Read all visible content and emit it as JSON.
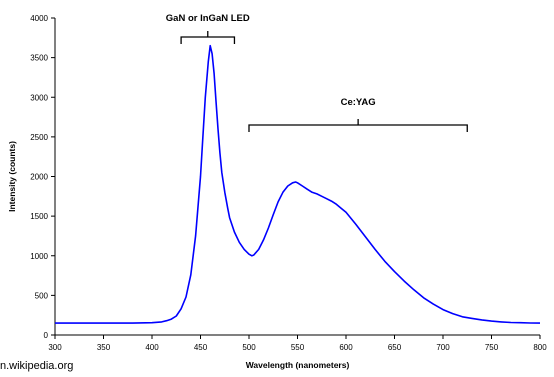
{
  "chart_data": {
    "type": "line",
    "title": "",
    "xlabel": "Wavelength (nanometers)",
    "ylabel": "Intensity (counts)",
    "xlim": [
      300,
      800
    ],
    "ylim": [
      0,
      4000
    ],
    "xticks": [
      300,
      350,
      400,
      450,
      500,
      550,
      600,
      650,
      700,
      750,
      800
    ],
    "yticks": [
      0,
      500,
      1000,
      1500,
      2000,
      2500,
      3000,
      3500,
      4000
    ],
    "grid": false,
    "legend": "none",
    "series": [
      {
        "color": "#0000ff",
        "x": [
          300,
          320,
          340,
          360,
          380,
          400,
          410,
          415,
          420,
          425,
          430,
          435,
          440,
          445,
          450,
          452,
          455,
          458,
          460,
          462,
          464,
          466,
          468,
          470,
          472,
          475,
          478,
          480,
          485,
          490,
          495,
          500,
          503,
          505,
          510,
          515,
          520,
          525,
          530,
          535,
          540,
          545,
          548,
          550,
          555,
          560,
          565,
          570,
          575,
          580,
          585,
          590,
          595,
          600,
          610,
          620,
          630,
          640,
          650,
          660,
          670,
          680,
          690,
          700,
          710,
          720,
          730,
          740,
          750,
          760,
          770,
          780,
          790,
          800
        ],
        "y": [
          150,
          150,
          150,
          150,
          150,
          155,
          165,
          180,
          200,
          240,
          330,
          480,
          760,
          1250,
          2000,
          2400,
          3000,
          3450,
          3650,
          3550,
          3300,
          2950,
          2600,
          2300,
          2050,
          1800,
          1600,
          1480,
          1300,
          1170,
          1080,
          1020,
          1000,
          1010,
          1080,
          1200,
          1350,
          1520,
          1680,
          1800,
          1880,
          1920,
          1930,
          1920,
          1880,
          1840,
          1800,
          1780,
          1750,
          1720,
          1690,
          1650,
          1600,
          1550,
          1400,
          1240,
          1080,
          930,
          800,
          680,
          570,
          470,
          390,
          320,
          270,
          230,
          210,
          190,
          175,
          165,
          158,
          155,
          152,
          150
        ]
      }
    ],
    "annotations": [
      {
        "text": "GaN or InGaN LED",
        "from": 430,
        "to": 485
      },
      {
        "text": "Ce:YAG",
        "from": 500,
        "to": 725
      }
    ]
  },
  "footer": {
    "text": "n.wikipedia.org"
  }
}
